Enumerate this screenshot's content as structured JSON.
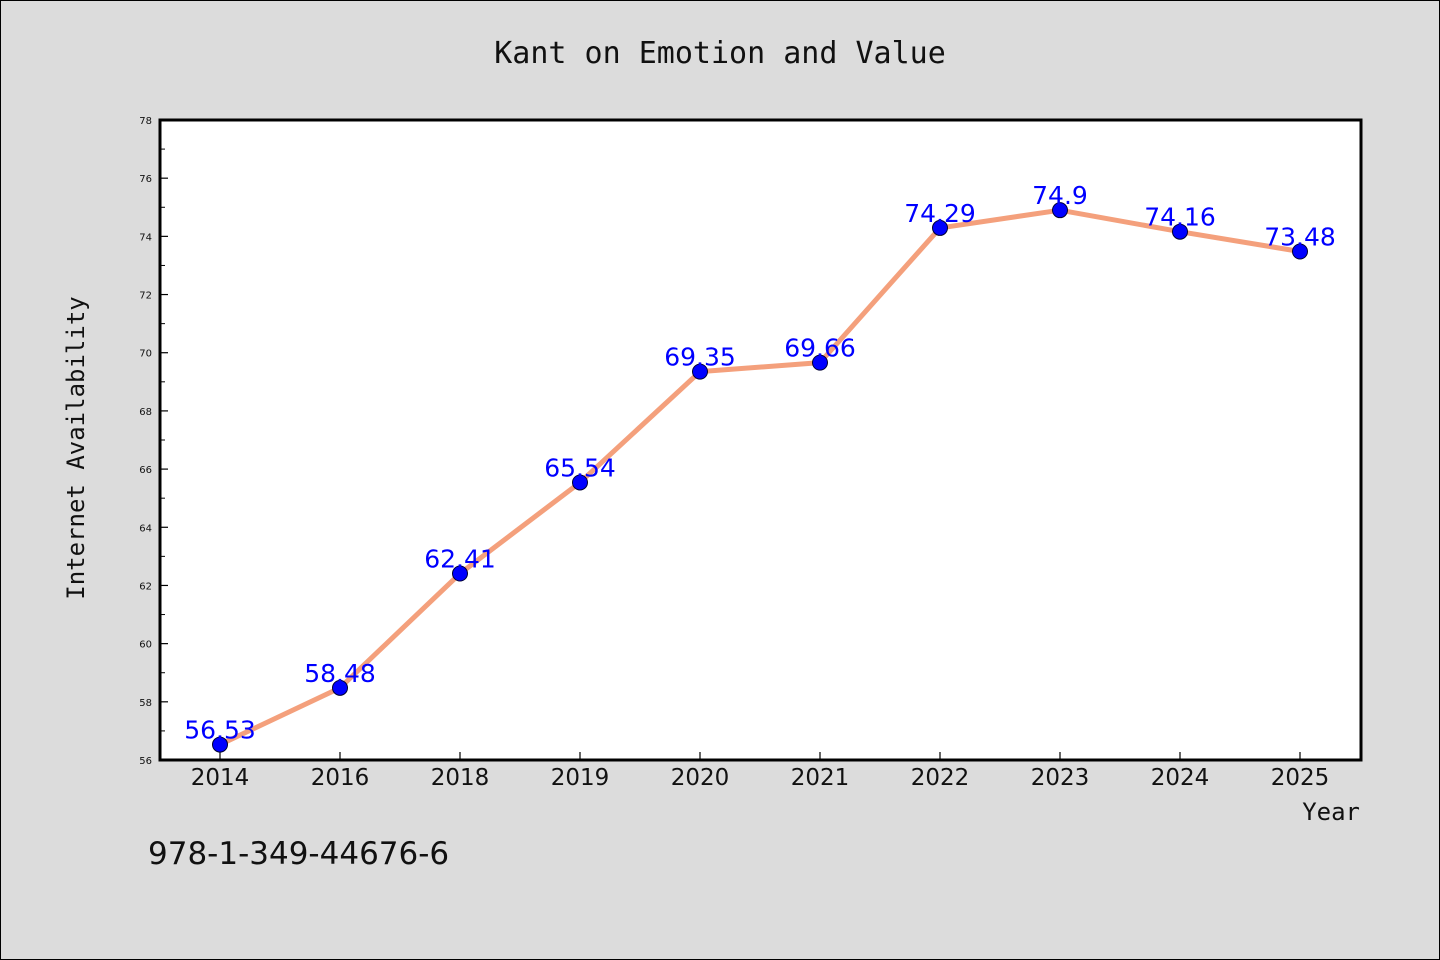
{
  "chart_data": {
    "type": "line",
    "title": "Kant on Emotion and Value",
    "xlabel": "Year",
    "ylabel": "Internet Availability",
    "categories": [
      "2014",
      "2016",
      "2018",
      "2019",
      "2020",
      "2021",
      "2022",
      "2023",
      "2024",
      "2025"
    ],
    "values": [
      56.53,
      58.48,
      62.41,
      65.54,
      69.35,
      69.66,
      74.29,
      74.9,
      74.16,
      73.48
    ],
    "data_labels": [
      "56.53",
      "58.48",
      "62.41",
      "65.54",
      "69.35",
      "69.66",
      "74.29",
      "74.9",
      "74.16",
      "73.48"
    ],
    "ylim": [
      56,
      78
    ],
    "yticks": [
      56,
      58,
      60,
      62,
      64,
      66,
      68,
      70,
      72,
      74,
      76,
      78
    ],
    "grid": false,
    "line_color": "#f4a07c",
    "marker_color": "#0000ff",
    "label_color": "#0000ff"
  },
  "footer": {
    "isbn": "978-1-349-44676-6"
  }
}
